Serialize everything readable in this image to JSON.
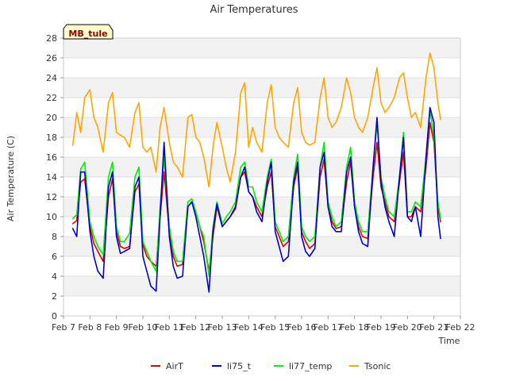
{
  "chart_data": {
    "type": "line",
    "title": "Air Temperatures",
    "xlabel": "Time",
    "ylabel": "Air Temperature (C)",
    "station_label": "MB_tule",
    "xlim": [
      7,
      22
    ],
    "ylim": [
      0,
      28
    ],
    "x_ticks": [
      7,
      8,
      9,
      10,
      11,
      12,
      13,
      14,
      15,
      16,
      17,
      18,
      19,
      20,
      21,
      22
    ],
    "x_tick_labels": [
      "Feb 7",
      "Feb 8",
      "Feb 9",
      "Feb 10",
      "Feb 11",
      "Feb 12",
      "Feb 13",
      "Feb 14",
      "Feb 15",
      "Feb 16",
      "Feb 17",
      "Feb 18",
      "Feb 19",
      "Feb 20",
      "Feb 21",
      "Feb 22"
    ],
    "y_ticks": [
      0,
      2,
      4,
      6,
      8,
      10,
      12,
      14,
      16,
      18,
      20,
      22,
      24,
      26,
      28
    ],
    "grid": "horizontal bands",
    "legend_position": "bottom",
    "x_unit": "day of February",
    "series": [
      {
        "name": "AirT",
        "color": "#dd0000",
        "x": [
          7.35,
          7.5,
          7.65,
          7.8,
          8.0,
          8.15,
          8.3,
          8.5,
          8.7,
          8.85,
          9.0,
          9.15,
          9.3,
          9.5,
          9.7,
          9.85,
          10.0,
          10.15,
          10.3,
          10.5,
          10.65,
          10.8,
          11.0,
          11.15,
          11.3,
          11.5,
          11.7,
          11.85,
          12.0,
          12.15,
          12.3,
          12.5,
          12.65,
          12.8,
          13.0,
          13.15,
          13.3,
          13.5,
          13.7,
          13.85,
          14.0,
          14.15,
          14.3,
          14.5,
          14.7,
          14.85,
          15.0,
          15.15,
          15.3,
          15.5,
          15.7,
          15.85,
          16.0,
          16.15,
          16.3,
          16.5,
          16.7,
          16.85,
          17.0,
          17.15,
          17.3,
          17.5,
          17.7,
          17.85,
          18.0,
          18.15,
          18.3,
          18.5,
          18.7,
          18.85,
          19.0,
          19.15,
          19.3,
          19.5,
          19.7,
          19.85,
          20.0,
          20.15,
          20.3,
          20.5,
          20.7,
          20.85,
          21.0,
          21.15,
          21.25
        ],
        "y": [
          9.3,
          9.6,
          13.5,
          13.8,
          9.0,
          7.3,
          6.5,
          5.5,
          12.0,
          13.8,
          8.5,
          7.0,
          6.8,
          7.0,
          12.5,
          13.3,
          7.2,
          6.0,
          5.5,
          5.0,
          10.0,
          14.5,
          8.5,
          6.0,
          5.0,
          5.2,
          11.0,
          11.5,
          10.5,
          9.0,
          7.5,
          4.5,
          8.0,
          11.0,
          9.0,
          9.5,
          10.0,
          10.8,
          14.0,
          14.5,
          12.5,
          12.0,
          11.0,
          10.0,
          13.0,
          14.5,
          9.0,
          8.0,
          7.0,
          7.5,
          13.0,
          15.0,
          8.5,
          7.5,
          6.8,
          7.3,
          14.0,
          15.8,
          11.0,
          9.5,
          8.8,
          9.0,
          13.5,
          15.5,
          11.0,
          9.0,
          8.0,
          7.8,
          14.0,
          17.5,
          13.0,
          11.5,
          10.0,
          9.5,
          13.5,
          16.5,
          10.0,
          10.0,
          11.0,
          10.5,
          15.0,
          19.5,
          17.5,
          11.0,
          9.5
        ]
      },
      {
        "name": "li75_t",
        "color": "#0000cc",
        "x": [
          7.35,
          7.5,
          7.65,
          7.8,
          8.0,
          8.15,
          8.3,
          8.5,
          8.7,
          8.85,
          9.0,
          9.15,
          9.3,
          9.5,
          9.7,
          9.85,
          10.0,
          10.15,
          10.3,
          10.5,
          10.65,
          10.8,
          11.0,
          11.15,
          11.3,
          11.5,
          11.7,
          11.85,
          12.0,
          12.15,
          12.3,
          12.5,
          12.65,
          12.8,
          13.0,
          13.15,
          13.3,
          13.5,
          13.7,
          13.85,
          14.0,
          14.15,
          14.3,
          14.5,
          14.7,
          14.85,
          15.0,
          15.15,
          15.3,
          15.5,
          15.7,
          15.85,
          16.0,
          16.15,
          16.3,
          16.5,
          16.7,
          16.85,
          17.0,
          17.15,
          17.3,
          17.5,
          17.7,
          17.85,
          18.0,
          18.15,
          18.3,
          18.5,
          18.7,
          18.85,
          19.0,
          19.15,
          19.3,
          19.5,
          19.7,
          19.85,
          20.0,
          20.15,
          20.3,
          20.5,
          20.7,
          20.85,
          21.0,
          21.15,
          21.25
        ],
        "y": [
          8.8,
          8.0,
          14.5,
          14.5,
          8.5,
          6.0,
          4.5,
          3.8,
          13.0,
          14.5,
          8.0,
          6.3,
          6.5,
          6.8,
          13.0,
          14.0,
          6.0,
          4.5,
          3.0,
          2.5,
          10.0,
          17.5,
          8.0,
          5.0,
          3.8,
          4.0,
          11.0,
          11.5,
          10.0,
          8.0,
          6.0,
          2.4,
          8.5,
          11.3,
          9.0,
          9.5,
          10.0,
          11.0,
          14.0,
          15.0,
          12.5,
          12.0,
          10.5,
          9.5,
          13.5,
          15.5,
          8.5,
          7.0,
          5.5,
          6.0,
          13.5,
          15.5,
          8.0,
          6.5,
          6.0,
          6.8,
          15.0,
          16.5,
          11.0,
          9.0,
          8.5,
          8.5,
          14.5,
          16.0,
          11.0,
          8.5,
          7.3,
          7.0,
          15.0,
          20.0,
          13.5,
          11.0,
          9.5,
          8.0,
          14.0,
          18.0,
          10.0,
          9.5,
          11.0,
          8.0,
          16.0,
          21.0,
          19.5,
          10.0,
          7.8
        ]
      },
      {
        "name": "li77_temp",
        "color": "#00ee00",
        "x": [
          7.35,
          7.5,
          7.65,
          7.8,
          8.0,
          8.15,
          8.3,
          8.5,
          8.7,
          8.85,
          9.0,
          9.15,
          9.3,
          9.5,
          9.7,
          9.85,
          10.0,
          10.15,
          10.3,
          10.5,
          10.65,
          10.8,
          11.0,
          11.15,
          11.3,
          11.5,
          11.7,
          11.85,
          12.0,
          12.15,
          12.3,
          12.5,
          12.65,
          12.8,
          13.0,
          13.15,
          13.3,
          13.5,
          13.7,
          13.85,
          14.0,
          14.15,
          14.3,
          14.5,
          14.7,
          14.85,
          15.0,
          15.15,
          15.3,
          15.5,
          15.7,
          15.85,
          16.0,
          16.15,
          16.3,
          16.5,
          16.7,
          16.85,
          17.0,
          17.15,
          17.3,
          17.5,
          17.7,
          17.85,
          18.0,
          18.15,
          18.3,
          18.5,
          18.7,
          18.85,
          19.0,
          19.15,
          19.3,
          19.5,
          19.7,
          19.85,
          20.0,
          20.15,
          20.3,
          20.5,
          20.7,
          20.85,
          21.0,
          21.15,
          21.25
        ],
        "y": [
          9.8,
          10.2,
          14.8,
          15.5,
          9.5,
          8.0,
          7.0,
          6.2,
          14.0,
          15.5,
          9.0,
          7.5,
          7.5,
          8.3,
          14.0,
          15.0,
          7.5,
          6.5,
          5.5,
          4.5,
          11.0,
          16.0,
          9.0,
          6.5,
          5.5,
          5.5,
          11.5,
          11.8,
          10.5,
          9.0,
          8.0,
          4.0,
          9.0,
          11.5,
          9.3,
          10.0,
          10.5,
          11.5,
          15.0,
          15.5,
          13.0,
          13.0,
          11.5,
          10.5,
          14.0,
          15.8,
          9.5,
          8.5,
          7.5,
          8.0,
          14.0,
          16.3,
          9.0,
          8.0,
          7.5,
          8.0,
          15.0,
          17.5,
          11.5,
          10.0,
          9.0,
          9.5,
          15.0,
          17.0,
          11.5,
          9.5,
          8.5,
          8.5,
          15.0,
          19.5,
          14.0,
          12.0,
          10.5,
          10.0,
          14.0,
          18.5,
          10.5,
          10.5,
          11.5,
          11.0,
          16.0,
          20.8,
          18.0,
          11.5,
          9.8
        ]
      },
      {
        "name": "Tsonic",
        "color": "#ffa500",
        "x": [
          7.35,
          7.5,
          7.65,
          7.8,
          8.0,
          8.15,
          8.3,
          8.5,
          8.7,
          8.85,
          9.0,
          9.15,
          9.3,
          9.5,
          9.7,
          9.85,
          10.0,
          10.15,
          10.3,
          10.5,
          10.65,
          10.8,
          11.0,
          11.15,
          11.3,
          11.5,
          11.7,
          11.85,
          12.0,
          12.15,
          12.3,
          12.5,
          12.65,
          12.8,
          13.0,
          13.15,
          13.3,
          13.5,
          13.7,
          13.85,
          14.0,
          14.15,
          14.3,
          14.5,
          14.7,
          14.85,
          15.0,
          15.15,
          15.3,
          15.5,
          15.7,
          15.85,
          16.0,
          16.15,
          16.3,
          16.5,
          16.7,
          16.85,
          17.0,
          17.15,
          17.3,
          17.5,
          17.7,
          17.85,
          18.0,
          18.15,
          18.3,
          18.5,
          18.7,
          18.85,
          19.0,
          19.15,
          19.3,
          19.5,
          19.7,
          19.85,
          20.0,
          20.15,
          20.3,
          20.5,
          20.7,
          20.85,
          21.0,
          21.15,
          21.25
        ],
        "y": [
          17.2,
          20.5,
          18.5,
          22.0,
          22.8,
          20.0,
          19.0,
          16.5,
          21.5,
          22.5,
          18.5,
          18.2,
          18.0,
          17.0,
          20.5,
          21.5,
          17.0,
          16.5,
          17.0,
          14.5,
          19.0,
          21.0,
          17.5,
          15.5,
          15.0,
          14.0,
          20.0,
          20.3,
          18.0,
          17.5,
          16.0,
          13.0,
          17.0,
          19.5,
          17.0,
          15.0,
          13.5,
          16.5,
          22.5,
          23.5,
          17.0,
          19.0,
          17.5,
          16.5,
          21.5,
          23.3,
          19.0,
          18.0,
          17.5,
          17.0,
          21.5,
          23.0,
          18.5,
          17.5,
          17.2,
          17.5,
          22.0,
          24.0,
          20.0,
          19.0,
          19.5,
          21.0,
          24.0,
          22.5,
          20.0,
          19.0,
          18.5,
          20.0,
          23.0,
          25.0,
          21.5,
          20.5,
          21.0,
          22.0,
          24.0,
          24.5,
          22.0,
          20.0,
          20.5,
          19.0,
          24.0,
          26.5,
          25.0,
          21.5,
          19.8
        ]
      }
    ]
  }
}
